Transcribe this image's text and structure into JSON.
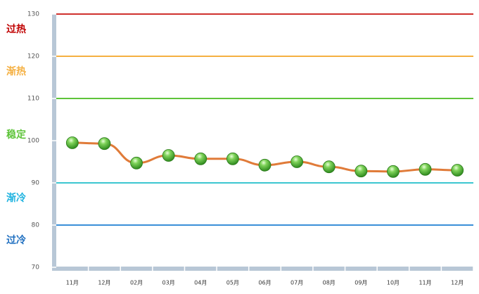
{
  "chart_data": {
    "type": "line",
    "categories": [
      "11月",
      "12月",
      "02月",
      "03月",
      "04月",
      "05月",
      "06月",
      "07月",
      "08月",
      "09月",
      "10月",
      "11月",
      "12月"
    ],
    "series": [
      {
        "color": "#e07b39",
        "values": [
          99.5,
          99.3,
          94.7,
          96.5,
          95.7,
          95.7,
          94.2,
          95.0,
          93.8,
          92.8,
          92.7,
          93.2,
          93.0
        ]
      }
    ],
    "ylim": [
      70,
      130
    ],
    "yticks": [
      70,
      80,
      90,
      100,
      110,
      120,
      130
    ],
    "reference_lines": [
      {
        "value": 130,
        "color": "#d0312d"
      },
      {
        "value": 120,
        "color": "#f5b042"
      },
      {
        "value": 110,
        "color": "#5ec43a"
      },
      {
        "value": 90,
        "color": "#3cc6d0"
      },
      {
        "value": 80,
        "color": "#3a8fd8"
      }
    ],
    "zones": [
      {
        "label": "过热",
        "color": "#c00000"
      },
      {
        "label": "渐热",
        "color": "#f5b042"
      },
      {
        "label": "稳定",
        "color": "#5ec43a"
      },
      {
        "label": "渐冷",
        "color": "#1fb3e0"
      },
      {
        "label": "过冷",
        "color": "#1f6fc0"
      }
    ]
  }
}
